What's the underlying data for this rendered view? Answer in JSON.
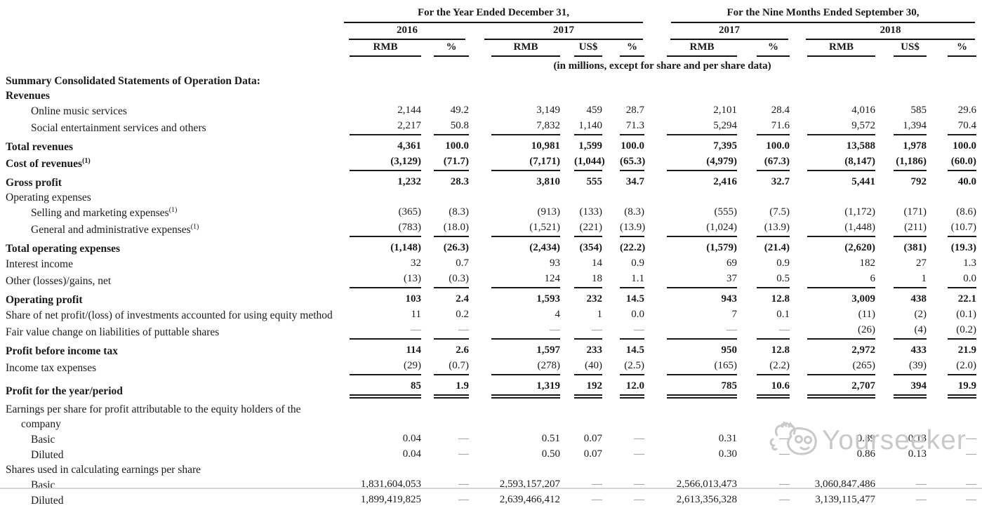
{
  "header": {
    "group1": {
      "title": "For the Year Ended December 31,",
      "years": [
        {
          "label": "2016",
          "cols": [
            "RMB",
            "%"
          ]
        },
        {
          "label": "2017",
          "cols": [
            "RMB",
            "US$",
            "%"
          ]
        }
      ]
    },
    "group2": {
      "title": "For the Nine Months Ended September 30,",
      "years": [
        {
          "label": "2017",
          "cols": [
            "RMB",
            "%"
          ]
        },
        {
          "label": "2018",
          "cols": [
            "RMB",
            "US$",
            "%"
          ]
        }
      ]
    },
    "units_note": "(in millions, except for share and per share data)"
  },
  "watermark": {
    "text": "Yourseeker"
  },
  "rows": [
    {
      "label": "Summary Consolidated Statements of Operation Data:",
      "bold": true
    },
    {
      "label": "Revenues",
      "bold": true
    },
    {
      "label": "Online music services",
      "indent": 1,
      "values": [
        "2,144",
        "49.2",
        "3,149",
        "459",
        "28.7",
        "2,101",
        "28.4",
        "4,016",
        "585",
        "29.6"
      ]
    },
    {
      "label": "Social entertainment services and others",
      "indent": 1,
      "rule": "single",
      "values": [
        "2,217",
        "50.8",
        "7,832",
        "1,140",
        "71.3",
        "5,294",
        "71.6",
        "9,572",
        "1,394",
        "70.4"
      ]
    },
    {
      "label": "Total revenues",
      "bold": true,
      "pad": true,
      "values": [
        "4,361",
        "100.0",
        "10,981",
        "1,599",
        "100.0",
        "7,395",
        "100.0",
        "13,588",
        "1,978",
        "100.0"
      ]
    },
    {
      "label": "Cost of revenues",
      "sup": "(1)",
      "bold": true,
      "rule": "single",
      "values": [
        "(3,129)",
        "(71.7)",
        "(7,171)",
        "(1,044)",
        "(65.3)",
        "(4,979)",
        "(67.3)",
        "(8,147)",
        "(1,186)",
        "(60.0)"
      ]
    },
    {
      "label": "Gross profit",
      "bold": true,
      "pad": true,
      "values": [
        "1,232",
        "28.3",
        "3,810",
        "555",
        "34.7",
        "2,416",
        "32.7",
        "5,441",
        "792",
        "40.0"
      ]
    },
    {
      "label": "Operating expenses"
    },
    {
      "label": "Selling and marketing expenses",
      "sup": "(1)",
      "indent": 1,
      "values": [
        "(365)",
        "(8.3)",
        "(913)",
        "(133)",
        "(8.3)",
        "(555)",
        "(7.5)",
        "(1,172)",
        "(171)",
        "(8.6)"
      ]
    },
    {
      "label": "General and administrative expenses",
      "sup": "(1)",
      "indent": 1,
      "rule": "single",
      "values": [
        "(783)",
        "(18.0)",
        "(1,521)",
        "(221)",
        "(13.9)",
        "(1,024)",
        "(13.9)",
        "(1,448)",
        "(211)",
        "(10.7)"
      ]
    },
    {
      "label": "Total operating expenses",
      "bold": true,
      "pad": true,
      "values": [
        "(1,148)",
        "(26.3)",
        "(2,434)",
        "(354)",
        "(22.2)",
        "(1,579)",
        "(21.4)",
        "(2,620)",
        "(381)",
        "(19.3)"
      ]
    },
    {
      "label": "Interest income",
      "values": [
        "32",
        "0.7",
        "93",
        "14",
        "0.9",
        "69",
        "0.9",
        "182",
        "27",
        "1.3"
      ]
    },
    {
      "label": "Other (losses)/gains, net",
      "rule": "single",
      "values": [
        "(13)",
        "(0.3)",
        "124",
        "18",
        "1.1",
        "37",
        "0.5",
        "6",
        "1",
        "0.0"
      ]
    },
    {
      "label": "Operating profit",
      "bold": true,
      "pad": true,
      "values": [
        "103",
        "2.4",
        "1,593",
        "232",
        "14.5",
        "943",
        "12.8",
        "3,009",
        "438",
        "22.1"
      ]
    },
    {
      "label": "Share of net profit/(loss) of investments accounted for using equity method",
      "wrap": true,
      "values": [
        "11",
        "0.2",
        "4",
        "1",
        "0.0",
        "7",
        "0.1",
        "(11)",
        "(2)",
        "(0.1)"
      ]
    },
    {
      "label": "Fair value change on liabilities of puttable shares",
      "rule": "single",
      "values": [
        "—",
        "—",
        "—",
        "—",
        "—",
        "—",
        "—",
        "(26)",
        "(4)",
        "(0.2)"
      ]
    },
    {
      "label": "Profit before income tax",
      "bold": true,
      "pad": true,
      "values": [
        "114",
        "2.6",
        "1,597",
        "233",
        "14.5",
        "950",
        "12.8",
        "2,972",
        "433",
        "21.9"
      ]
    },
    {
      "label": "Income tax expenses",
      "rule": "single",
      "values": [
        "(29)",
        "(0.7)",
        "(278)",
        "(40)",
        "(2.5)",
        "(165)",
        "(2.2)",
        "(265)",
        "(39)",
        "(2.0)"
      ]
    },
    {
      "label": "Profit for the year/period",
      "bold": true,
      "pad": true,
      "rule": "double",
      "values": [
        "85",
        "1.9",
        "1,319",
        "192",
        "12.0",
        "785",
        "10.6",
        "2,707",
        "394",
        "19.9"
      ]
    },
    {
      "label": "Earnings per share for profit attributable to the equity holders of the company",
      "wrap": true,
      "pad": true
    },
    {
      "label": "Basic",
      "indent": 1,
      "values": [
        "0.04",
        "—",
        "0.51",
        "0.07",
        "—",
        "0.31",
        "—",
        "0.89",
        "0.13",
        "—"
      ]
    },
    {
      "label": "Diluted",
      "indent": 1,
      "values": [
        "0.04",
        "—",
        "0.50",
        "0.07",
        "—",
        "0.30",
        "—",
        "0.86",
        "0.13",
        "—"
      ]
    },
    {
      "label": "Shares used in calculating earnings per share"
    },
    {
      "label": "Basic",
      "indent": 1,
      "values": [
        "1,831,604,053",
        "—",
        "2,593,157,207",
        "—",
        "—",
        "2,566,013,473",
        "—",
        "3,060,847,486",
        "—",
        "—"
      ]
    },
    {
      "label": "Diluted",
      "indent": 1,
      "values": [
        "1,899,419,825",
        "—",
        "2,639,466,412",
        "—",
        "—",
        "2,613,356,328",
        "—",
        "3,139,115,477",
        "—",
        "—"
      ]
    }
  ]
}
